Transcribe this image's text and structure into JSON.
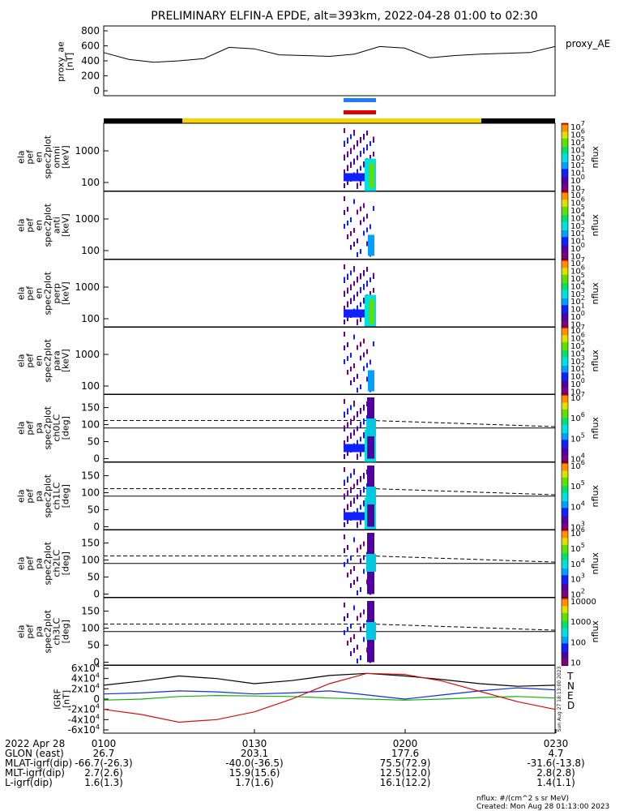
{
  "title": "PRELIMINARY ELFIN-A EPDE, alt=393km, 2022-04-28 01:00 to 02:30",
  "colors": {
    "black": "#000000",
    "science_bar_yellow": "#f5d400",
    "blue_marker": "#1f7bff",
    "red_marker": "#e00000",
    "grf_T": "#000000",
    "grf_N": "#1030d0",
    "grf_E": "#10b010",
    "grf_D": "#d01010"
  },
  "proxy_ae": {
    "ylabel_lines": [
      "proxy_ae",
      "[nT]"
    ],
    "legend": "proxy_AE",
    "ticks": [
      "800",
      "600",
      "400",
      "200",
      "0"
    ]
  },
  "spectrograms": [
    {
      "ylabel_lines": [
        "ela",
        "pef",
        "en",
        "spec2plot",
        "omni",
        "[keV]"
      ],
      "ticks": [
        "1000",
        "100"
      ],
      "cbar_ticks": [
        "10",
        "10",
        "10",
        "10",
        "10",
        "10",
        "10",
        "10",
        "10"
      ],
      "cbar_exps": [
        "7",
        "6",
        "5",
        "4",
        "3",
        "2",
        "1",
        "0",
        ""
      ],
      "cbar_label": "nflux"
    },
    {
      "ylabel_lines": [
        "ela",
        "pef",
        "en",
        "spec2plot",
        "anti",
        "[keV]"
      ],
      "ticks": [
        "1000",
        "100"
      ],
      "cbar_ticks": [
        "10",
        "10",
        "10",
        "10",
        "10",
        "10",
        "10",
        "10",
        "10"
      ],
      "cbar_exps": [
        "7",
        "6",
        "5",
        "4",
        "3",
        "2",
        "1",
        "0",
        ""
      ],
      "cbar_label": "nflux"
    },
    {
      "ylabel_lines": [
        "ela",
        "pef",
        "en",
        "spec2plot",
        "perp",
        "[keV]"
      ],
      "ticks": [
        "1000",
        "100"
      ],
      "cbar_ticks": [
        "10",
        "10",
        "10",
        "10",
        "10",
        "10",
        "10",
        "10",
        "10"
      ],
      "cbar_exps": [
        "7",
        "6",
        "5",
        "4",
        "3",
        "2",
        "1",
        "0",
        ""
      ],
      "cbar_label": "nflux"
    },
    {
      "ylabel_lines": [
        "ela",
        "pef",
        "en",
        "spec2plot",
        "para",
        "[keV]"
      ],
      "ticks": [
        "1000",
        "100"
      ],
      "cbar_ticks": [
        "10",
        "10",
        "10",
        "10",
        "10",
        "10",
        "10",
        "10",
        "10"
      ],
      "cbar_exps": [
        "7",
        "6",
        "5",
        "4",
        "3",
        "2",
        "1",
        "0",
        ""
      ],
      "cbar_label": "nflux"
    }
  ],
  "pitch_panels": [
    {
      "ylabel_lines": [
        "ela",
        "pef",
        "pa",
        "spec2plot",
        "ch0LC",
        "[deg]"
      ],
      "ticks": [
        "150",
        "100",
        "50",
        "0"
      ],
      "cbar_ticks": [
        "10",
        "10",
        "10",
        "10"
      ],
      "cbar_exps": [
        "7",
        "6",
        "5",
        "4"
      ],
      "cbar_label": "nflux"
    },
    {
      "ylabel_lines": [
        "ela",
        "pef",
        "pa",
        "spec2plot",
        "ch1LC",
        "[deg]"
      ],
      "ticks": [
        "150",
        "100",
        "50",
        "0"
      ],
      "cbar_ticks": [
        "10",
        "10",
        "10",
        "10"
      ],
      "cbar_exps": [
        "6",
        "5",
        "4",
        "3"
      ],
      "cbar_label": "nflux"
    },
    {
      "ylabel_lines": [
        "ela",
        "pef",
        "pa",
        "spec2plot",
        "ch2LC",
        "[deg]"
      ],
      "ticks": [
        "150",
        "100",
        "50",
        "0"
      ],
      "cbar_ticks": [
        "10",
        "10",
        "10",
        "10",
        "10"
      ],
      "cbar_exps": [
        "6",
        "5",
        "4",
        "3",
        "2"
      ],
      "cbar_label": "nflux"
    },
    {
      "ylabel_lines": [
        "ela",
        "pef",
        "pa",
        "spec2plot",
        "ch3LC",
        "[deg]"
      ],
      "ticks": [
        "150",
        "100",
        "50",
        "0"
      ],
      "cbar_ticks": [
        "10000",
        "1000",
        "100",
        "10"
      ],
      "cbar_exps": [
        "",
        "",
        "",
        ""
      ],
      "cbar_label": "nflux"
    }
  ],
  "igrf": {
    "ylabel_lines": [
      "IGRF",
      "[nT]"
    ],
    "ticks": [
      "6x10",
      "4x10",
      "2x10",
      "0",
      "-2x10",
      "-4x10",
      "-6x10"
    ],
    "tick_exps": [
      "4",
      "4",
      "4",
      "",
      "4",
      "4",
      "4"
    ],
    "legend": [
      "T",
      "N",
      "E",
      "D"
    ],
    "side_text": "Sun Aug 27 18:13:00 2023"
  },
  "footer": {
    "rows": [
      {
        "label": "2022 Apr 28",
        "values": [
          "0100",
          "0130",
          "0200",
          "0230"
        ]
      },
      {
        "label": "GLON (east)",
        "values": [
          "26.7",
          "203.1",
          "177.6",
          "4.7"
        ]
      },
      {
        "label": "MLAT-igrf(dip)",
        "values": [
          "-66.7(-26.3)",
          "-40.0(-36.5)",
          "75.5(72.9)",
          "-31.6(-13.8)"
        ]
      },
      {
        "label": "MLT-igrf(dip)",
        "values": [
          "2.7(2.6)",
          "15.9(15.6)",
          "12.5(12.0)",
          "2.8(2.8)"
        ]
      },
      {
        "label": "L-igrf(dip)",
        "values": [
          "1.6(1.3)",
          "1.7(1.6)",
          "16.1(12.2)",
          "1.4(1.1)"
        ]
      }
    ],
    "units_note": "nflux: #/(cm^2 s sr MeV)",
    "created": "Created: Mon Aug 28 01:13:00 2023"
  },
  "chart_data": [
    {
      "type": "line",
      "title": "PRELIMINARY ELFIN-A EPDE, alt=393km, 2022-04-28 01:00 to 02:30",
      "ylabel": "proxy_ae [nT]",
      "ylim": [
        0,
        800
      ],
      "x": [
        0,
        5,
        10,
        15,
        20,
        25,
        30,
        35,
        40,
        45,
        50,
        55,
        60,
        65,
        70,
        75,
        80,
        85,
        90
      ],
      "series": [
        {
          "name": "proxy_AE",
          "values": [
            510,
            420,
            380,
            400,
            430,
            580,
            560,
            480,
            470,
            460,
            490,
            590,
            570,
            440,
            470,
            490,
            500,
            510,
            590
          ]
        }
      ],
      "x_tick_labels": [
        "0100",
        "0130",
        "0200",
        "0230"
      ]
    },
    {
      "type": "line",
      "ylabel": "IGRF [nT]",
      "ylim": [
        -60000,
        60000
      ],
      "x": [
        0,
        7.5,
        15,
        22.5,
        30,
        37.5,
        45,
        52.5,
        60,
        67.5,
        75,
        82.5,
        90
      ],
      "series": [
        {
          "name": "T",
          "values": [
            27000,
            35000,
            45000,
            40000,
            30000,
            36000,
            46000,
            50000,
            45000,
            38000,
            30000,
            25000,
            27000
          ]
        },
        {
          "name": "N",
          "values": [
            10000,
            12000,
            16000,
            14000,
            10000,
            12000,
            16000,
            8000,
            0,
            8000,
            16000,
            22000,
            18000
          ]
        },
        {
          "name": "E",
          "values": [
            -2000,
            0,
            5000,
            7000,
            6000,
            5000,
            2000,
            0,
            -2000,
            0,
            3000,
            5000,
            2000
          ]
        },
        {
          "name": "D",
          "values": [
            -20000,
            -30000,
            -45000,
            -40000,
            -25000,
            0,
            30000,
            50000,
            48000,
            35000,
            15000,
            -5000,
            -20000
          ]
        }
      ]
    }
  ]
}
